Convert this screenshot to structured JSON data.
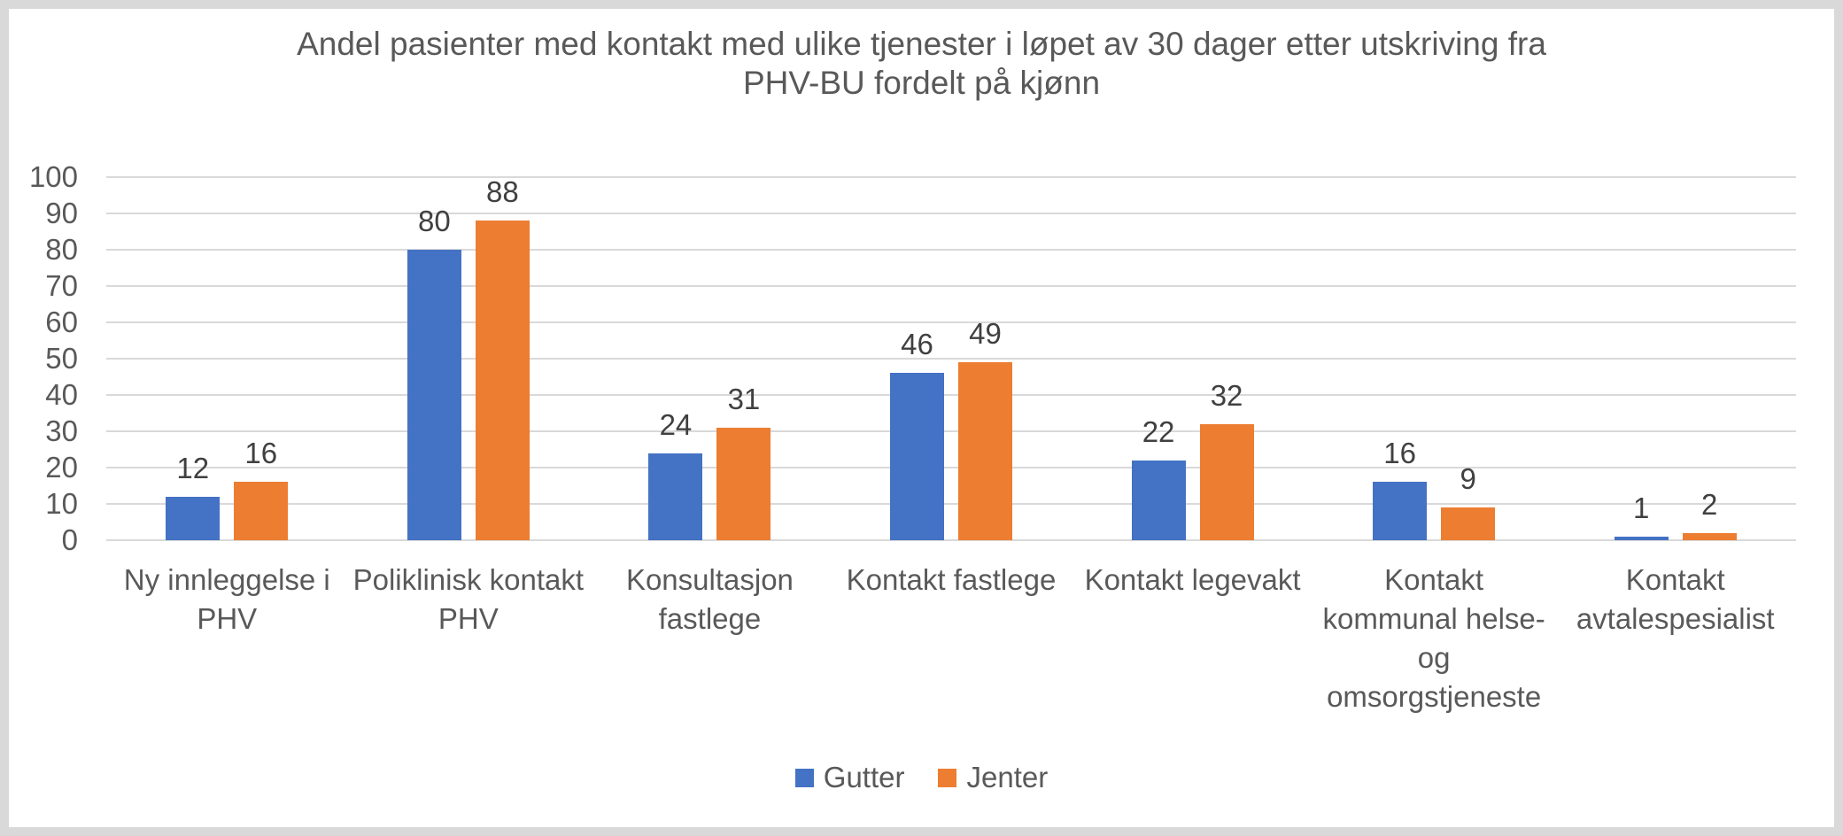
{
  "chart": {
    "title_display": "Andel pasienter med kontakt med ulike tjenester i løpet av 30 dager etter utskriving fra\nPHV-BU fordelt på kjønn"
  },
  "chart_data": {
    "type": "bar",
    "title": "Andel pasienter med kontakt med ulike tjenester i løpet av 30 dager etter utskriving fra PHV-BU fordelt på kjønn",
    "categories": [
      "Ny innleggelse i PHV",
      "Poliklinisk kontakt PHV",
      "Konsultasjon fastlege",
      "Kontakt fastlege",
      "Kontakt legevakt",
      "Kontakt kommunal helse- og omsorgstjeneste",
      "Kontakt avtalespesialist"
    ],
    "category_display": [
      "Ny innleggelse i\nPHV",
      "Poliklinisk kontakt\nPHV",
      "Konsultasjon\nfastlege",
      "Kontakt fastlege",
      "Kontakt legevakt",
      "Kontakt\nkommunal helse-\nog\nomsorgstjeneste",
      "Kontakt\navtalespesialist"
    ],
    "series": [
      {
        "name": "Gutter",
        "color": "#4472C4",
        "values": [
          12,
          80,
          24,
          46,
          22,
          16,
          1
        ]
      },
      {
        "name": "Jenter",
        "color": "#ED7D31",
        "values": [
          16,
          88,
          31,
          49,
          32,
          9,
          2
        ]
      }
    ],
    "xlabel": "",
    "ylabel": "",
    "ylim": [
      0,
      100
    ],
    "ytick_step": 10,
    "yticks": [
      0,
      10,
      20,
      30,
      40,
      50,
      60,
      70,
      80,
      90,
      100
    ],
    "grid": true,
    "data_labels": true,
    "legend_position": "bottom"
  },
  "colors": {
    "grid": "#D9D9D9",
    "frame": "#D9D9D9",
    "axis_text": "#595959",
    "data_label_text": "#404040",
    "background": "#FFFFFF",
    "series_blue": "#4472C4",
    "series_orange": "#ED7D31"
  }
}
